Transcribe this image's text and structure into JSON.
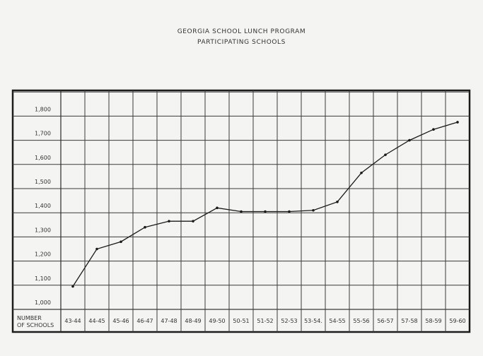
{
  "header": {
    "title_line1": "GEORGIA SCHOOL LUNCH PROGRAM",
    "title_line2": "PARTICIPATING SCHOOLS"
  },
  "chart_data": {
    "type": "line",
    "title": "GEORGIA SCHOOL LUNCH PROGRAM PARTICIPATING SCHOOLS",
    "xlabel": "NUMBER OF SCHOOLS",
    "ylabel": "",
    "categories": [
      "43-44",
      "44-45",
      "45-46",
      "46-47",
      "47-48",
      "48-49",
      "49-50",
      "50-51",
      "51-52",
      "52-53",
      "53-54.",
      "54-55",
      "55-56",
      "56-57",
      "57-58",
      "58-59",
      "59-60"
    ],
    "yticks": [
      "1,000",
      "1,100",
      "1,200",
      "1,300",
      "1,400",
      "1,500",
      "1,600",
      "1,700",
      "1,800"
    ],
    "ylim": [
      1000,
      1900
    ],
    "series": [
      {
        "values": [
          1095,
          1250,
          1280,
          1340,
          1365,
          1365,
          1420,
          1405,
          1405,
          1405,
          1410,
          1445,
          1565,
          1640,
          1700,
          1745,
          1775
        ]
      }
    ],
    "grid": true,
    "legend": "none"
  }
}
